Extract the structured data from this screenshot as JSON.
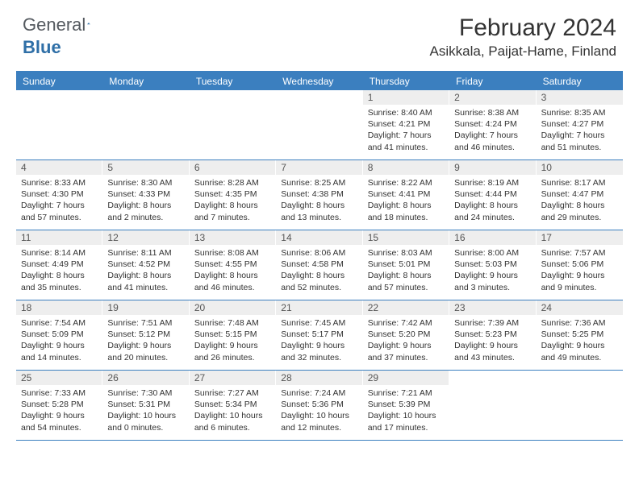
{
  "brand": {
    "part1": "General",
    "part2": "Blue",
    "logo_color": "#2f6fa7"
  },
  "title": "February 2024",
  "location": "Asikkala, Paijat-Hame, Finland",
  "colors": {
    "header_bar": "#3b7fbf",
    "daynum_bg": "#eeeeee",
    "text": "#333333",
    "divider": "#3b7fbf"
  },
  "weekdays": [
    "Sunday",
    "Monday",
    "Tuesday",
    "Wednesday",
    "Thursday",
    "Friday",
    "Saturday"
  ],
  "weeks": [
    [
      {
        "empty": true
      },
      {
        "empty": true
      },
      {
        "empty": true
      },
      {
        "empty": true
      },
      {
        "num": "1",
        "sunrise": "Sunrise: 8:40 AM",
        "sunset": "Sunset: 4:21 PM",
        "daylight1": "Daylight: 7 hours",
        "daylight2": "and 41 minutes."
      },
      {
        "num": "2",
        "sunrise": "Sunrise: 8:38 AM",
        "sunset": "Sunset: 4:24 PM",
        "daylight1": "Daylight: 7 hours",
        "daylight2": "and 46 minutes."
      },
      {
        "num": "3",
        "sunrise": "Sunrise: 8:35 AM",
        "sunset": "Sunset: 4:27 PM",
        "daylight1": "Daylight: 7 hours",
        "daylight2": "and 51 minutes."
      }
    ],
    [
      {
        "num": "4",
        "sunrise": "Sunrise: 8:33 AM",
        "sunset": "Sunset: 4:30 PM",
        "daylight1": "Daylight: 7 hours",
        "daylight2": "and 57 minutes."
      },
      {
        "num": "5",
        "sunrise": "Sunrise: 8:30 AM",
        "sunset": "Sunset: 4:33 PM",
        "daylight1": "Daylight: 8 hours",
        "daylight2": "and 2 minutes."
      },
      {
        "num": "6",
        "sunrise": "Sunrise: 8:28 AM",
        "sunset": "Sunset: 4:35 PM",
        "daylight1": "Daylight: 8 hours",
        "daylight2": "and 7 minutes."
      },
      {
        "num": "7",
        "sunrise": "Sunrise: 8:25 AM",
        "sunset": "Sunset: 4:38 PM",
        "daylight1": "Daylight: 8 hours",
        "daylight2": "and 13 minutes."
      },
      {
        "num": "8",
        "sunrise": "Sunrise: 8:22 AM",
        "sunset": "Sunset: 4:41 PM",
        "daylight1": "Daylight: 8 hours",
        "daylight2": "and 18 minutes."
      },
      {
        "num": "9",
        "sunrise": "Sunrise: 8:19 AM",
        "sunset": "Sunset: 4:44 PM",
        "daylight1": "Daylight: 8 hours",
        "daylight2": "and 24 minutes."
      },
      {
        "num": "10",
        "sunrise": "Sunrise: 8:17 AM",
        "sunset": "Sunset: 4:47 PM",
        "daylight1": "Daylight: 8 hours",
        "daylight2": "and 29 minutes."
      }
    ],
    [
      {
        "num": "11",
        "sunrise": "Sunrise: 8:14 AM",
        "sunset": "Sunset: 4:49 PM",
        "daylight1": "Daylight: 8 hours",
        "daylight2": "and 35 minutes."
      },
      {
        "num": "12",
        "sunrise": "Sunrise: 8:11 AM",
        "sunset": "Sunset: 4:52 PM",
        "daylight1": "Daylight: 8 hours",
        "daylight2": "and 41 minutes."
      },
      {
        "num": "13",
        "sunrise": "Sunrise: 8:08 AM",
        "sunset": "Sunset: 4:55 PM",
        "daylight1": "Daylight: 8 hours",
        "daylight2": "and 46 minutes."
      },
      {
        "num": "14",
        "sunrise": "Sunrise: 8:06 AM",
        "sunset": "Sunset: 4:58 PM",
        "daylight1": "Daylight: 8 hours",
        "daylight2": "and 52 minutes."
      },
      {
        "num": "15",
        "sunrise": "Sunrise: 8:03 AM",
        "sunset": "Sunset: 5:01 PM",
        "daylight1": "Daylight: 8 hours",
        "daylight2": "and 57 minutes."
      },
      {
        "num": "16",
        "sunrise": "Sunrise: 8:00 AM",
        "sunset": "Sunset: 5:03 PM",
        "daylight1": "Daylight: 9 hours",
        "daylight2": "and 3 minutes."
      },
      {
        "num": "17",
        "sunrise": "Sunrise: 7:57 AM",
        "sunset": "Sunset: 5:06 PM",
        "daylight1": "Daylight: 9 hours",
        "daylight2": "and 9 minutes."
      }
    ],
    [
      {
        "num": "18",
        "sunrise": "Sunrise: 7:54 AM",
        "sunset": "Sunset: 5:09 PM",
        "daylight1": "Daylight: 9 hours",
        "daylight2": "and 14 minutes."
      },
      {
        "num": "19",
        "sunrise": "Sunrise: 7:51 AM",
        "sunset": "Sunset: 5:12 PM",
        "daylight1": "Daylight: 9 hours",
        "daylight2": "and 20 minutes."
      },
      {
        "num": "20",
        "sunrise": "Sunrise: 7:48 AM",
        "sunset": "Sunset: 5:15 PM",
        "daylight1": "Daylight: 9 hours",
        "daylight2": "and 26 minutes."
      },
      {
        "num": "21",
        "sunrise": "Sunrise: 7:45 AM",
        "sunset": "Sunset: 5:17 PM",
        "daylight1": "Daylight: 9 hours",
        "daylight2": "and 32 minutes."
      },
      {
        "num": "22",
        "sunrise": "Sunrise: 7:42 AM",
        "sunset": "Sunset: 5:20 PM",
        "daylight1": "Daylight: 9 hours",
        "daylight2": "and 37 minutes."
      },
      {
        "num": "23",
        "sunrise": "Sunrise: 7:39 AM",
        "sunset": "Sunset: 5:23 PM",
        "daylight1": "Daylight: 9 hours",
        "daylight2": "and 43 minutes."
      },
      {
        "num": "24",
        "sunrise": "Sunrise: 7:36 AM",
        "sunset": "Sunset: 5:25 PM",
        "daylight1": "Daylight: 9 hours",
        "daylight2": "and 49 minutes."
      }
    ],
    [
      {
        "num": "25",
        "sunrise": "Sunrise: 7:33 AM",
        "sunset": "Sunset: 5:28 PM",
        "daylight1": "Daylight: 9 hours",
        "daylight2": "and 54 minutes."
      },
      {
        "num": "26",
        "sunrise": "Sunrise: 7:30 AM",
        "sunset": "Sunset: 5:31 PM",
        "daylight1": "Daylight: 10 hours",
        "daylight2": "and 0 minutes."
      },
      {
        "num": "27",
        "sunrise": "Sunrise: 7:27 AM",
        "sunset": "Sunset: 5:34 PM",
        "daylight1": "Daylight: 10 hours",
        "daylight2": "and 6 minutes."
      },
      {
        "num": "28",
        "sunrise": "Sunrise: 7:24 AM",
        "sunset": "Sunset: 5:36 PM",
        "daylight1": "Daylight: 10 hours",
        "daylight2": "and 12 minutes."
      },
      {
        "num": "29",
        "sunrise": "Sunrise: 7:21 AM",
        "sunset": "Sunset: 5:39 PM",
        "daylight1": "Daylight: 10 hours",
        "daylight2": "and 17 minutes."
      },
      {
        "empty": true
      },
      {
        "empty": true
      }
    ]
  ]
}
